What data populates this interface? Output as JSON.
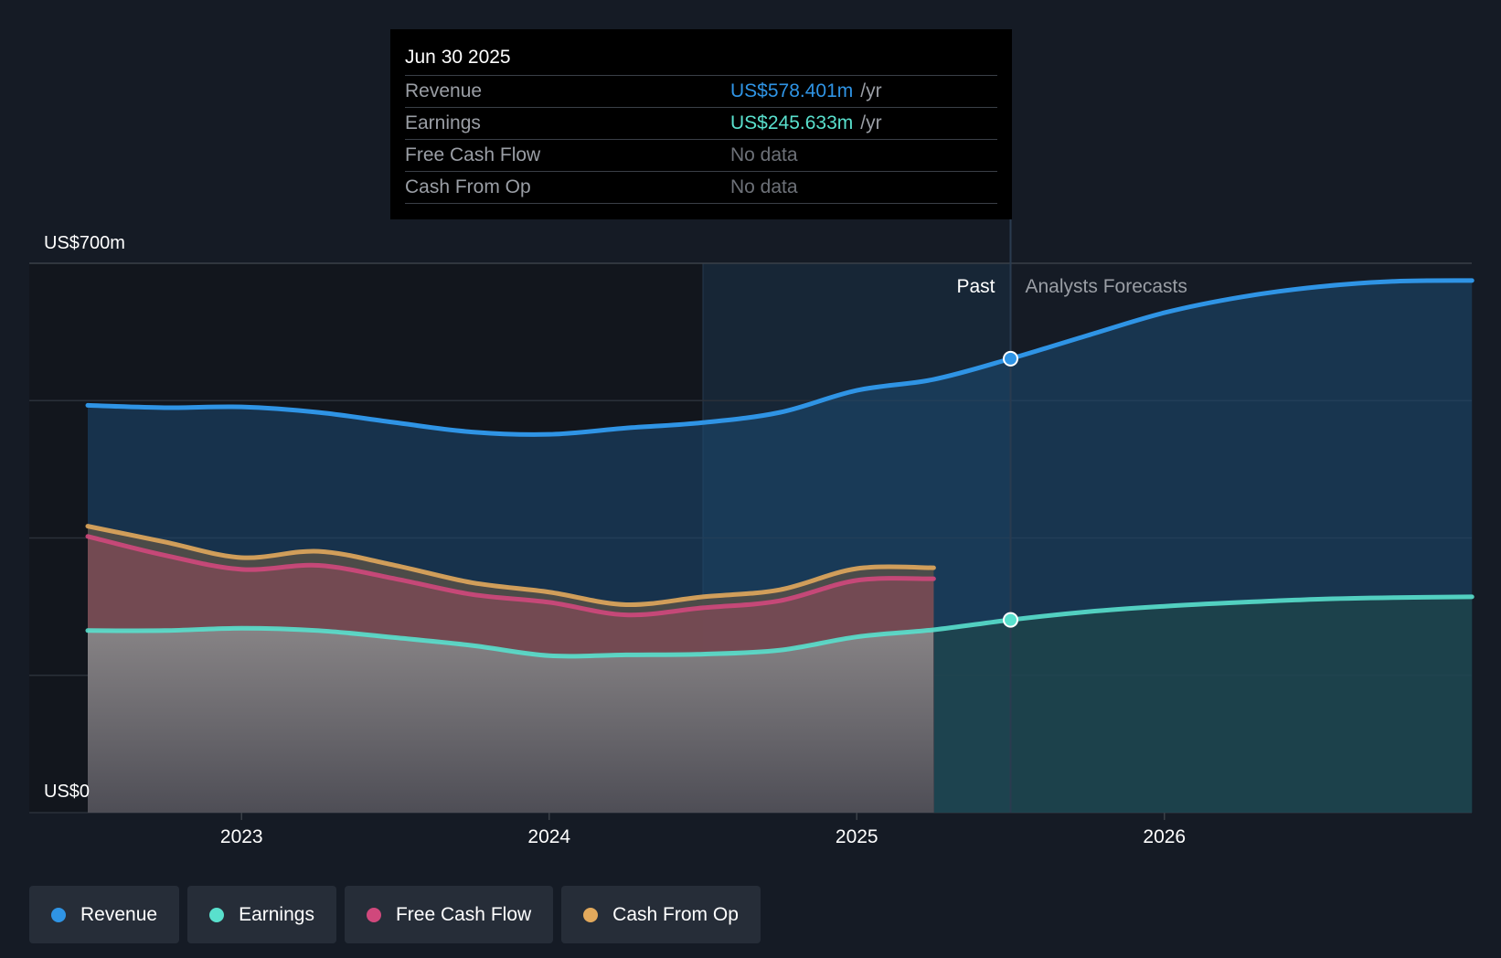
{
  "chart_data": {
    "type": "area",
    "y_axis": {
      "top_label": "US$700m",
      "bottom_label": "US$0",
      "ylim": [
        0,
        700
      ]
    },
    "x_ticks": [
      "2023",
      "2024",
      "2025",
      "2026"
    ],
    "regions": {
      "past_label": "Past",
      "forecast_label": "Analysts Forecasts"
    },
    "series": [
      {
        "name": "Revenue",
        "color": "#2f94e5",
        "points": [
          [
            2022.5,
            519
          ],
          [
            2022.75,
            516
          ],
          [
            2023.0,
            517
          ],
          [
            2023.25,
            510
          ],
          [
            2023.5,
            497
          ],
          [
            2023.75,
            485
          ],
          [
            2024.0,
            482
          ],
          [
            2024.25,
            490
          ],
          [
            2024.5,
            497
          ],
          [
            2024.75,
            510
          ],
          [
            2025.0,
            538
          ],
          [
            2025.25,
            552
          ],
          [
            2025.5,
            578.401
          ],
          [
            2025.75,
            608
          ],
          [
            2026.0,
            637
          ],
          [
            2026.25,
            657
          ],
          [
            2026.5,
            670
          ],
          [
            2026.75,
            677
          ],
          [
            2027.0,
            678
          ]
        ]
      },
      {
        "name": "Earnings",
        "color": "#59e0cd",
        "points": [
          [
            2022.5,
            232
          ],
          [
            2022.75,
            232
          ],
          [
            2023.0,
            235
          ],
          [
            2023.25,
            232
          ],
          [
            2023.5,
            223
          ],
          [
            2023.75,
            213
          ],
          [
            2024.0,
            200
          ],
          [
            2024.25,
            201
          ],
          [
            2024.5,
            202
          ],
          [
            2024.75,
            207
          ],
          [
            2025.0,
            224
          ],
          [
            2025.25,
            233
          ],
          [
            2025.5,
            245.633
          ],
          [
            2025.75,
            256
          ],
          [
            2026.0,
            263
          ],
          [
            2026.25,
            268
          ],
          [
            2026.5,
            272
          ],
          [
            2026.75,
            274
          ],
          [
            2027.0,
            275
          ]
        ]
      },
      {
        "name": "Free Cash Flow",
        "color": "#d0487c",
        "points": [
          [
            2022.5,
            352
          ],
          [
            2022.75,
            328
          ],
          [
            2023.0,
            310
          ],
          [
            2023.25,
            315
          ],
          [
            2023.5,
            298
          ],
          [
            2023.75,
            278
          ],
          [
            2024.0,
            268
          ],
          [
            2024.25,
            252
          ],
          [
            2024.5,
            261
          ],
          [
            2024.75,
            270
          ],
          [
            2025.0,
            296
          ],
          [
            2025.25,
            298
          ]
        ]
      },
      {
        "name": "Cash From Op",
        "color": "#e2a95c",
        "points": [
          [
            2022.5,
            365
          ],
          [
            2022.75,
            345
          ],
          [
            2023.0,
            325
          ],
          [
            2023.25,
            333
          ],
          [
            2023.5,
            315
          ],
          [
            2023.75,
            293
          ],
          [
            2024.0,
            281
          ],
          [
            2024.25,
            265
          ],
          [
            2024.5,
            275
          ],
          [
            2024.75,
            284
          ],
          [
            2025.0,
            311
          ],
          [
            2025.25,
            312
          ]
        ]
      }
    ],
    "highlight": {
      "date": "Jun 30 2025",
      "x": 2025.5
    }
  },
  "tooltip": {
    "date": "Jun 30 2025",
    "rows": [
      {
        "label": "Revenue",
        "value": "US$578.401m",
        "unit": "/yr"
      },
      {
        "label": "Earnings",
        "value": "US$245.633m",
        "unit": "/yr"
      },
      {
        "label": "Free Cash Flow",
        "value": "No data"
      },
      {
        "label": "Cash From Op",
        "value": "No data"
      }
    ]
  },
  "legend": [
    {
      "label": "Revenue",
      "color": "#2f94e5"
    },
    {
      "label": "Earnings",
      "color": "#59e0cd"
    },
    {
      "label": "Free Cash Flow",
      "color": "#d0487c"
    },
    {
      "label": "Cash From Op",
      "color": "#e2a95c"
    }
  ]
}
